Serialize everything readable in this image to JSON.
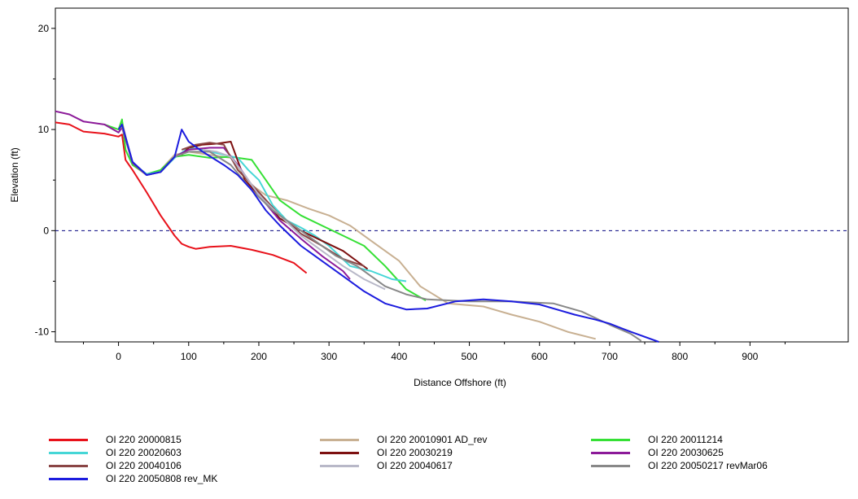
{
  "chart_data": {
    "type": "line",
    "title": "",
    "xlabel": "Distance Offshore (ft)",
    "ylabel": "Elevation (ft)",
    "xlim": [
      -90,
      1040
    ],
    "ylim": [
      -11,
      22
    ],
    "xticks": [
      0,
      100,
      200,
      300,
      400,
      500,
      600,
      700,
      800,
      900
    ],
    "yticks": [
      -10,
      0,
      10,
      20
    ],
    "reference_line": {
      "y": 0,
      "style": "dashed",
      "color": "#00007f"
    },
    "grid": false,
    "legend_position": "bottom",
    "series": [
      {
        "name": "OI 220 20000815",
        "color": "#e8111a",
        "x": [
          -90,
          -70,
          -50,
          -20,
          0,
          5,
          10,
          20,
          40,
          60,
          80,
          90,
          100,
          110,
          130,
          160,
          190,
          220,
          250,
          268
        ],
        "y": [
          10.7,
          10.5,
          9.8,
          9.6,
          9.3,
          9.5,
          7.0,
          6.0,
          3.8,
          1.5,
          -0.5,
          -1.3,
          -1.6,
          -1.8,
          -1.6,
          -1.5,
          -1.9,
          -2.4,
          -3.2,
          -4.2
        ]
      },
      {
        "name": "OI 220 20010901 AD_rev",
        "color": "#c8b092",
        "x": [
          0,
          5,
          20,
          40,
          60,
          80,
          100,
          130,
          160,
          190,
          210,
          240,
          270,
          300,
          330,
          360,
          400,
          430,
          470,
          520,
          560,
          600,
          640,
          680
        ],
        "y": [
          10.0,
          10.8,
          6.5,
          5.5,
          6.0,
          7.5,
          7.8,
          7.5,
          7.2,
          4.5,
          3.5,
          3.0,
          2.2,
          1.5,
          0.5,
          -1.0,
          -3.0,
          -5.5,
          -7.2,
          -7.5,
          -8.3,
          -9.0,
          -10.0,
          -10.7
        ]
      },
      {
        "name": "OI 220 20011214",
        "color": "#35e035",
        "x": [
          -20,
          0,
          5,
          10,
          20,
          40,
          60,
          80,
          100,
          130,
          160,
          190,
          210,
          230,
          260,
          290,
          320,
          350,
          380,
          410,
          438
        ],
        "y": [
          10.5,
          10.0,
          11.0,
          8.0,
          6.5,
          5.6,
          6.0,
          7.3,
          7.5,
          7.2,
          7.3,
          7.0,
          5.0,
          3.0,
          1.5,
          0.5,
          -0.5,
          -1.5,
          -3.5,
          -5.8,
          -6.9
        ]
      },
      {
        "name": "OI 220 20020603",
        "color": "#45d6d6",
        "x": [
          0,
          5,
          20,
          40,
          60,
          80,
          100,
          120,
          150,
          170,
          185,
          200,
          220,
          240,
          260,
          280,
          300,
          330,
          360,
          390,
          410
        ],
        "y": [
          10.0,
          10.5,
          6.7,
          5.6,
          5.8,
          7.2,
          8.2,
          8.0,
          7.5,
          7.2,
          6.0,
          5.0,
          2.5,
          1.0,
          0.3,
          -0.5,
          -1.5,
          -3.5,
          -4.0,
          -4.8,
          -5.0
        ]
      },
      {
        "name": "OI 220 20030219",
        "color": "#7d1010",
        "x": [
          90,
          100,
          120,
          140,
          160,
          180,
          200,
          230,
          260,
          290,
          320,
          355
        ],
        "y": [
          7.5,
          8.2,
          8.5,
          8.6,
          8.8,
          5.0,
          3.5,
          1.2,
          0.0,
          -1.0,
          -2.0,
          -3.8
        ]
      },
      {
        "name": "OI 220 20030625",
        "color": "#8c1a99",
        "x": [
          -90,
          -70,
          -50,
          -20,
          0,
          5,
          20,
          40,
          60,
          80,
          100,
          130,
          150,
          170,
          200,
          230,
          260,
          290,
          320,
          330
        ],
        "y": [
          11.8,
          11.5,
          10.8,
          10.5,
          9.7,
          10.2,
          6.7,
          5.5,
          5.8,
          7.3,
          8.0,
          8.2,
          8.2,
          6.5,
          3.5,
          1.0,
          -0.8,
          -2.5,
          -4.0,
          -4.8
        ]
      },
      {
        "name": "OI 220 20040106",
        "color": "#8a4545",
        "x": [
          90,
          110,
          130,
          150,
          170,
          200,
          230,
          260,
          290,
          320,
          350
        ],
        "y": [
          8.0,
          8.5,
          8.7,
          8.5,
          6.0,
          3.8,
          1.5,
          -0.3,
          -1.5,
          -2.8,
          -3.5
        ]
      },
      {
        "name": "OI 220 20040617",
        "color": "#b8b8c8",
        "x": [
          120,
          140,
          160,
          180,
          200,
          230,
          260,
          290,
          320,
          350,
          380
        ],
        "y": [
          8.0,
          7.8,
          7.3,
          5.5,
          3.5,
          1.5,
          -0.5,
          -2.0,
          -3.5,
          -4.8,
          -5.8
        ]
      },
      {
        "name": "OI 220 20050217 revMar06",
        "color": "#888888",
        "x": [
          0,
          5,
          20,
          40,
          60,
          80,
          100,
          130,
          160,
          190,
          220,
          250,
          280,
          310,
          340,
          380,
          410,
          440,
          500,
          560,
          620,
          660,
          700,
          730,
          745
        ],
        "y": [
          10.0,
          10.3,
          6.8,
          5.5,
          5.8,
          7.3,
          7.8,
          7.8,
          6.5,
          4.0,
          2.0,
          0.5,
          -1.0,
          -2.5,
          -3.5,
          -5.5,
          -6.3,
          -6.8,
          -7.0,
          -7.0,
          -7.2,
          -8.0,
          -9.3,
          -10.2,
          -10.9
        ]
      },
      {
        "name": "OI 220 20050808 rev_MK",
        "color": "#1c1cde",
        "x": [
          0,
          5,
          20,
          40,
          60,
          80,
          90,
          100,
          120,
          150,
          170,
          190,
          210,
          230,
          260,
          290,
          320,
          350,
          380,
          410,
          440,
          480,
          520,
          560,
          600,
          650,
          680,
          700,
          730,
          770
        ],
        "y": [
          10.0,
          10.5,
          6.8,
          5.5,
          5.8,
          7.3,
          10.0,
          8.8,
          7.8,
          6.5,
          5.5,
          4.0,
          2.0,
          0.5,
          -1.5,
          -3.0,
          -4.5,
          -6.0,
          -7.2,
          -7.8,
          -7.7,
          -7.0,
          -6.8,
          -7.0,
          -7.3,
          -8.3,
          -8.8,
          -9.2,
          -10.0,
          -11.0
        ]
      }
    ]
  }
}
